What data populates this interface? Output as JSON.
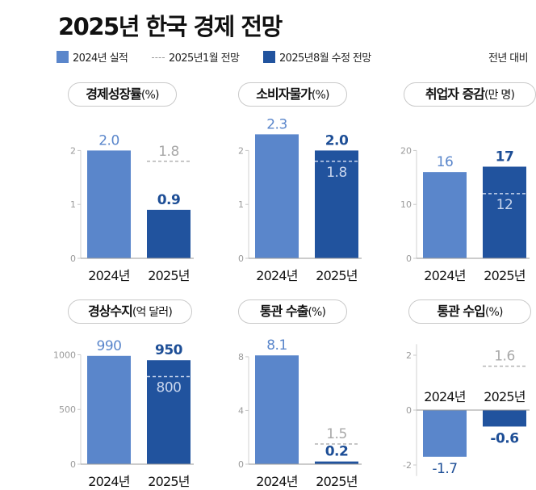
{
  "title": "2025년 한국 경제 전망",
  "legend": {
    "actual": "2024년 실적",
    "january": "2025년1월 전망",
    "august": "2025년8월 수정 전망",
    "note": "전년 대비"
  },
  "colors": {
    "actual": "#5a86cb",
    "august": "#21539e",
    "january_line": "#b3b3b3",
    "negative_label": "#1d4e96"
  },
  "chart_data": [
    {
      "type": "bar",
      "title": "경제성장률",
      "unit": "(%)",
      "categories": [
        "2024년",
        "2025년"
      ],
      "values": [
        2.0,
        0.9
      ],
      "value_labels": [
        "2.0",
        "0.9"
      ],
      "january_forecast": 1.8,
      "january_label": "1.8",
      "yticks": [
        0,
        1,
        2
      ],
      "ytick_labels": [
        "0",
        "1",
        "2"
      ],
      "ylim": [
        0,
        2.8
      ]
    },
    {
      "type": "bar",
      "title": "소비자물가",
      "unit": "(%)",
      "categories": [
        "2024년",
        "2025년"
      ],
      "values": [
        2.3,
        2.0
      ],
      "value_labels": [
        "2.3",
        "2.0"
      ],
      "january_forecast": 1.8,
      "january_label": "1.8",
      "yticks": [
        0,
        1,
        2
      ],
      "ytick_labels": [
        "0",
        "1",
        "2"
      ],
      "ylim": [
        0,
        2.8
      ]
    },
    {
      "type": "bar",
      "title": "취업자 증감",
      "unit": "(만 명)",
      "categories": [
        "2024년",
        "2025년"
      ],
      "values": [
        16,
        17
      ],
      "value_labels": [
        "16",
        "17"
      ],
      "january_forecast": 12,
      "january_label": "12",
      "yticks": [
        0,
        10,
        20
      ],
      "ytick_labels": [
        "0",
        "10",
        "20"
      ],
      "ylim": [
        0,
        28
      ]
    },
    {
      "type": "bar",
      "title": "경상수지",
      "unit": "(억 달러)",
      "categories": [
        "2024년",
        "2025년"
      ],
      "values": [
        990,
        950
      ],
      "value_labels": [
        "990",
        "950"
      ],
      "january_forecast": 800,
      "january_label": "800",
      "yticks": [
        0,
        500,
        1000
      ],
      "ytick_labels": [
        "0",
        "500",
        "1000"
      ],
      "ylim": [
        0,
        1350
      ]
    },
    {
      "type": "bar",
      "title": "통관 수출",
      "unit": "(%)",
      "categories": [
        "2024년",
        "2025년"
      ],
      "values": [
        8.1,
        0.2
      ],
      "value_labels": [
        "8.1",
        "0.2"
      ],
      "january_forecast": 1.5,
      "january_label": "1.5",
      "yticks": [
        0,
        4,
        8
      ],
      "ytick_labels": [
        "0",
        "4",
        "8"
      ],
      "ylim": [
        0,
        11
      ]
    },
    {
      "type": "bar",
      "title": "통관 수입",
      "unit": "(%)",
      "categories": [
        "2024년",
        "2025년"
      ],
      "values": [
        -1.7,
        -0.6
      ],
      "value_labels": [
        "-1.7",
        "-0.6"
      ],
      "january_forecast": 1.6,
      "january_label": "1.6",
      "yticks": [
        -2,
        0,
        2
      ],
      "ytick_labels": [
        "-2",
        "0",
        "2"
      ],
      "ylim": [
        -2.4,
        2.4
      ]
    }
  ]
}
